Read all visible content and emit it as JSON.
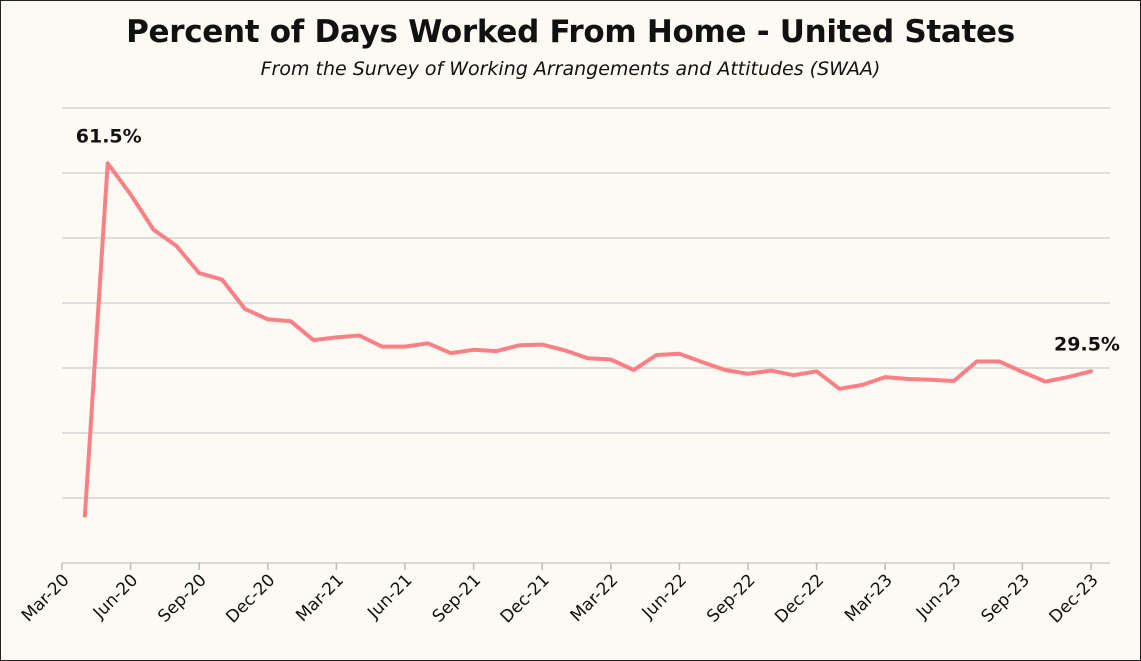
{
  "chart_data": {
    "type": "line",
    "title": "Percent of Days Worked From Home - United States",
    "subtitle": "From the Survey of Working Arrangements and Attitudes (SWAA)",
    "xlabel": "",
    "ylabel": "",
    "ylim": [
      0,
      70
    ],
    "grid": true,
    "line_color": "#f98086",
    "categories": [
      "Mar-20",
      "Jun-20",
      "Sep-20",
      "Dec-20",
      "Mar-21",
      "Jun-21",
      "Sep-21",
      "Dec-21",
      "Mar-22",
      "Jun-22",
      "Sep-22",
      "Dec-22",
      "Mar-23",
      "Jun-23",
      "Sep-23",
      "Dec-23"
    ],
    "x": [
      "2020-04",
      "2020-05",
      "2020-06",
      "2020-07",
      "2020-08",
      "2020-09",
      "2020-10",
      "2020-11",
      "2020-12",
      "2021-01",
      "2021-02",
      "2021-03",
      "2021-04",
      "2021-05",
      "2021-06",
      "2021-07",
      "2021-08",
      "2021-09",
      "2021-10",
      "2021-11",
      "2021-12",
      "2022-01",
      "2022-02",
      "2022-03",
      "2022-04",
      "2022-05",
      "2022-06",
      "2022-07",
      "2022-08",
      "2022-09",
      "2022-10",
      "2022-11",
      "2022-12",
      "2023-01",
      "2023-02",
      "2023-03",
      "2023-04",
      "2023-05",
      "2023-06",
      "2023-07",
      "2023-08",
      "2023-09",
      "2023-10",
      "2023-11",
      "2023-12"
    ],
    "series": [
      {
        "values": [
          7.3,
          61.5,
          56.7,
          51.3,
          48.8,
          44.6,
          43.6,
          39.1,
          37.5,
          37.2,
          34.3,
          34.7,
          35.0,
          33.3,
          33.3,
          33.8,
          32.3,
          32.8,
          32.6,
          33.5,
          33.6,
          32.7,
          31.5,
          31.3,
          29.7,
          32.0,
          32.2,
          30.9,
          29.7,
          29.1,
          29.6,
          28.9,
          29.5,
          26.8,
          27.4,
          28.6,
          28.3,
          28.2,
          28.0,
          31.0,
          31.0,
          29.4,
          27.9,
          28.6,
          29.5
        ]
      }
    ],
    "annotations": [
      {
        "text": "61.5%",
        "index": 1
      },
      {
        "text": "29.5%",
        "index": 44
      }
    ]
  }
}
